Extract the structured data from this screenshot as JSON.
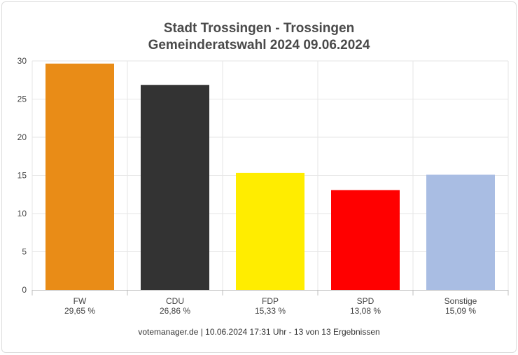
{
  "chart_data": {
    "type": "bar",
    "title": "Stadt Trossingen - Trossingen",
    "subtitle": "Gemeinderatswahl 2024 09.06.2024",
    "categories": [
      "FW",
      "CDU",
      "FDP",
      "SPD",
      "Sonstige"
    ],
    "value_labels": [
      "29,65 %",
      "26,86 %",
      "15,33 %",
      "13,08 %",
      "15,09 %"
    ],
    "values": [
      29.65,
      26.86,
      15.33,
      13.08,
      15.09
    ],
    "colors": [
      "#e98c17",
      "#333333",
      "#ffed00",
      "#ff0000",
      "#a9bde3"
    ],
    "ylim": [
      0,
      30
    ],
    "yticks": [
      0,
      5,
      10,
      15,
      20,
      25,
      30
    ],
    "grid": true,
    "legend": "none",
    "xlabel": "",
    "ylabel": ""
  },
  "footer": "votemanager.de | 10.06.2024 17:31 Uhr - 13 von 13 Ergebnissen"
}
